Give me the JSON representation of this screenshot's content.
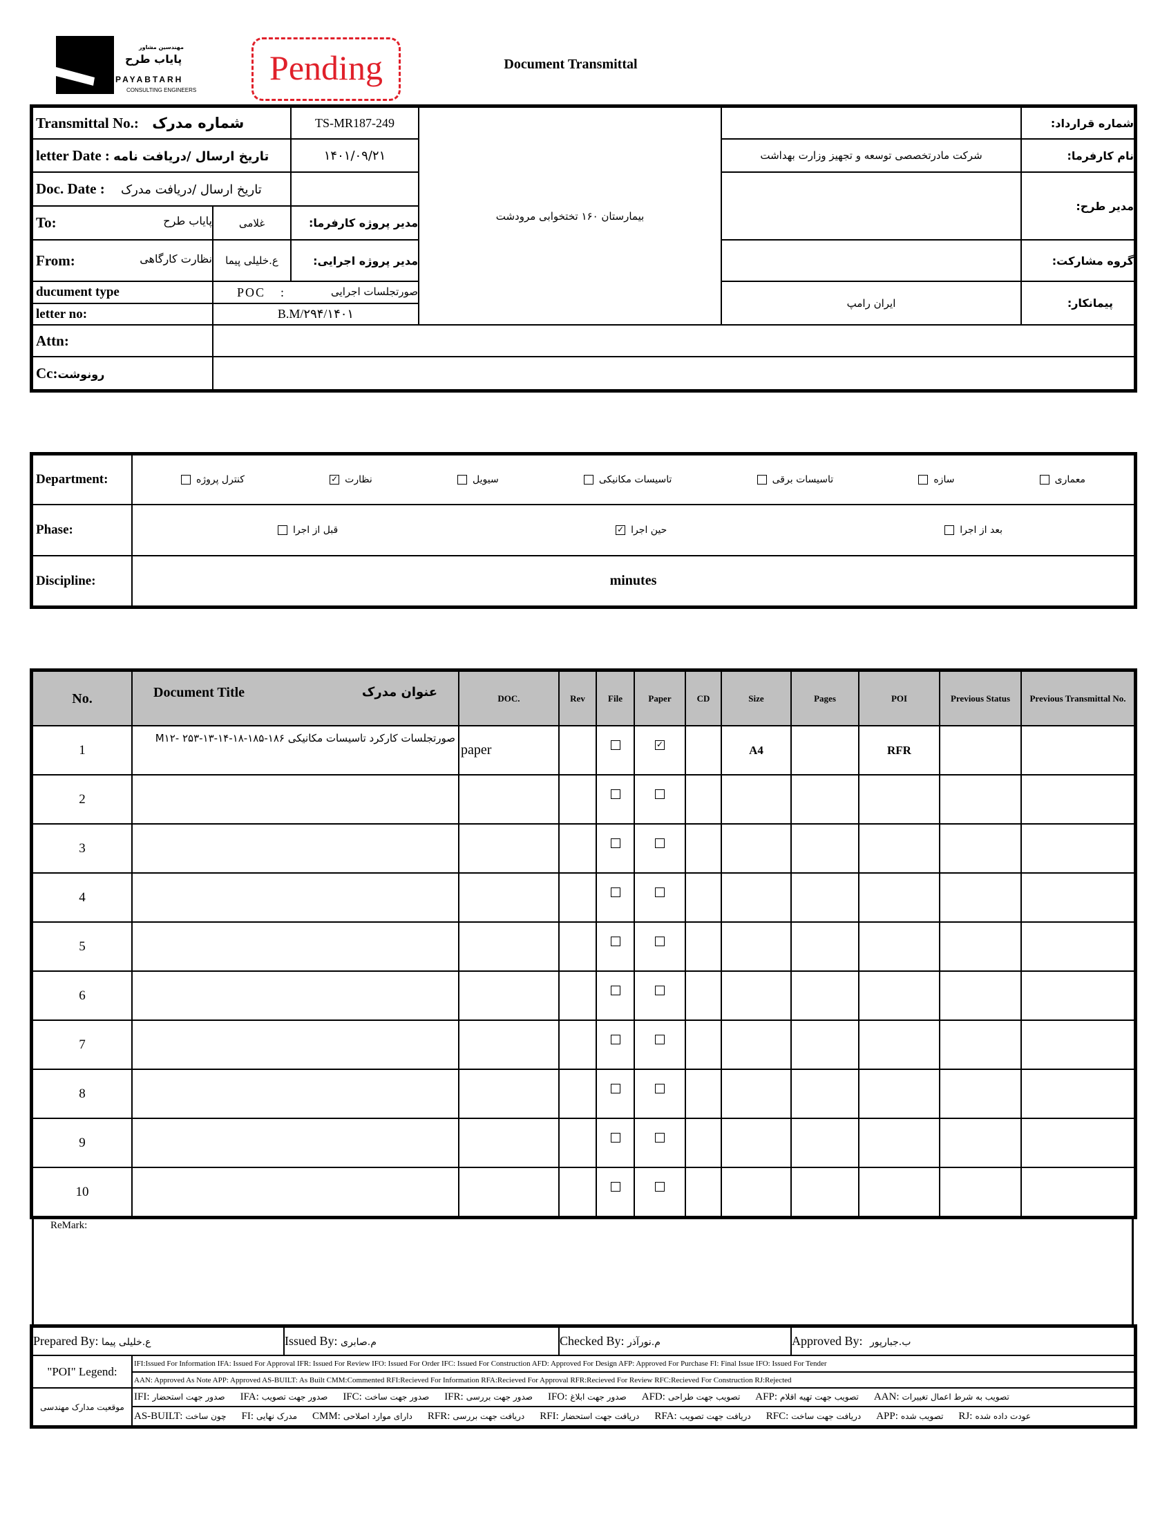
{
  "logo": {
    "fa_sub": "مهندسین مشاور",
    "fa_name": "پایاب طرح",
    "en_name": "PAYABTARH",
    "en_sub": "CONSULTING ENGINEERS"
  },
  "stamp": {
    "text": "Pending",
    "color": "#e0202a"
  },
  "title": "Document Transmittal",
  "header": {
    "transmittal_label": "Transmittal No.:",
    "transmittal_label_fa": "شماره مدرک",
    "transmittal_no": "TS-MR187-249",
    "letter_date_label": "letter Date :",
    "letter_date_label_fa": "تاریخ ارسال /دریافت نامه",
    "letter_date": "۱۴۰۱/۰۹/۲۱",
    "doc_date_label": "Doc. Date :",
    "doc_date_label_fa": "تاریخ ارسال /دریافت مدرک",
    "doc_date": "",
    "to_label": "To:",
    "to_value": "پایاب طرح",
    "to_person": "غلامی",
    "to_role": "مدیر پروژه کارفرما:",
    "from_label": "From:",
    "from_value": "نظارت کارگاهی",
    "from_person": "ع.خلیلی پیما",
    "from_role": "مدیر پروژه اجرایی:",
    "doc_type_label": "ducument type",
    "doc_type_code": "POC",
    "doc_type_sep": ":",
    "doc_type_fa": "صورتجلسات اجرایی",
    "letter_no_label": "letter no:",
    "letter_no": "B.M/۲۹۴/۱۴۰۱",
    "attn_label": "Attn:",
    "attn": "",
    "cc_label": "Cc:",
    "cc_label_fa": "رونوشت",
    "cc": "",
    "project": "بیمارستان ۱۶۰ تختخوابی مرودشت",
    "contract_label": "شماره قرارداد:",
    "contract": "",
    "client_label": "نام کارفرما:",
    "client": "شرکت مادرتخصصی توسعه و تجهیز وزارت بهداشت",
    "pm_label": "مدیر طرح:",
    "pm": "",
    "group_label": "گروه مشارکت:",
    "group": "",
    "contractor_label": "پیمانکار:",
    "contractor": "ایران رامپ"
  },
  "classification": {
    "department_label": "Department:",
    "departments": [
      {
        "label": "معماری",
        "checked": false
      },
      {
        "label": "سازه",
        "checked": false
      },
      {
        "label": "تاسیسات برقی",
        "checked": false
      },
      {
        "label": "تاسیسات مکانیکی",
        "checked": false
      },
      {
        "label": "سیویل",
        "checked": false
      },
      {
        "label": "نظارت",
        "checked": true
      },
      {
        "label": "کنترل پروژه",
        "checked": false
      }
    ],
    "phase_label": "Phase:",
    "phases": [
      {
        "label": "بعد از اجرا",
        "checked": false
      },
      {
        "label": "حین اجرا",
        "checked": true
      },
      {
        "label": "قبل از اجرا",
        "checked": false
      }
    ],
    "discipline_label": "Discipline:",
    "discipline": "minutes"
  },
  "docs": {
    "headers": {
      "no": "No.",
      "title_en": "Document Title",
      "title_fa": "عنوان مدرک",
      "doc": "DOC.",
      "rev": "Rev",
      "file": "File",
      "paper": "Paper",
      "cd": "CD",
      "size": "Size",
      "pages": "Pages",
      "poi": "POI",
      "prev_status": "Previous Status",
      "prev_no": "Previous Transmittal No."
    },
    "rows": [
      {
        "no": "1",
        "title": "صورتجلسات کارکرد تاسیسات مکانیکی ۱۸۶-۱۸۵-۱۸-۱۴-۱۳-M۱۲- ۲۵۳",
        "doc": "paper",
        "rev": "",
        "file": false,
        "paper": true,
        "cd": "",
        "size": "A4",
        "pages": "",
        "poi": "RFR",
        "prev_status": "",
        "prev_no": ""
      },
      {
        "no": "2",
        "title": "",
        "doc": "",
        "rev": "",
        "file": false,
        "paper": false,
        "cd": "",
        "size": "",
        "pages": "",
        "poi": "",
        "prev_status": "",
        "prev_no": ""
      },
      {
        "no": "3",
        "title": "",
        "doc": "",
        "rev": "",
        "file": false,
        "paper": false,
        "cd": "",
        "size": "",
        "pages": "",
        "poi": "",
        "prev_status": "",
        "prev_no": ""
      },
      {
        "no": "4",
        "title": "",
        "doc": "",
        "rev": "",
        "file": false,
        "paper": false,
        "cd": "",
        "size": "",
        "pages": "",
        "poi": "",
        "prev_status": "",
        "prev_no": ""
      },
      {
        "no": "5",
        "title": "",
        "doc": "",
        "rev": "",
        "file": false,
        "paper": false,
        "cd": "",
        "size": "",
        "pages": "",
        "poi": "",
        "prev_status": "",
        "prev_no": ""
      },
      {
        "no": "6",
        "title": "",
        "doc": "",
        "rev": "",
        "file": false,
        "paper": false,
        "cd": "",
        "size": "",
        "pages": "",
        "poi": "",
        "prev_status": "",
        "prev_no": ""
      },
      {
        "no": "7",
        "title": "",
        "doc": "",
        "rev": "",
        "file": false,
        "paper": false,
        "cd": "",
        "size": "",
        "pages": "",
        "poi": "",
        "prev_status": "",
        "prev_no": ""
      },
      {
        "no": "8",
        "title": "",
        "doc": "",
        "rev": "",
        "file": false,
        "paper": false,
        "cd": "",
        "size": "",
        "pages": "",
        "poi": "",
        "prev_status": "",
        "prev_no": ""
      },
      {
        "no": "9",
        "title": "",
        "doc": "",
        "rev": "",
        "file": false,
        "paper": false,
        "cd": "",
        "size": "",
        "pages": "",
        "poi": "",
        "prev_status": "",
        "prev_no": ""
      },
      {
        "no": "10",
        "title": "",
        "doc": "",
        "rev": "",
        "file": false,
        "paper": false,
        "cd": "",
        "size": "",
        "pages": "",
        "poi": "",
        "prev_status": "",
        "prev_no": ""
      }
    ]
  },
  "remark_label": "ReMark:",
  "signatures": {
    "prepared_label": "Prepared By:",
    "prepared": "ع.خلیلی پیما",
    "issued_label": "Issued By:",
    "issued": "م.صابری",
    "checked_label": "Checked By:",
    "checked": "م.نورآذر",
    "approved_label": "Approved By:",
    "approved": "ب.جبارپور"
  },
  "legend": {
    "poi_label": "\"POI\" Legend:",
    "line1": "IFI:Issued For Information  IFA: Issued For Approval  IFR: Issued For Review   IFO: Issued For Order  IFC: Issued For Construction AFD: Approved For Design AFP: Approved For Purchase  FI: Final Issue  IFO: Issued For Tender",
    "line2": "AAN: Approved As Note  APP: Approved  AS-BUILT: As Built CMM:Commented  RFI:Recieved For Information   RFA:Recieved For Approval   RFR:Recieved For Review  RFC:Recieved For Construction  RJ:Rejected",
    "fa_label": "موقعیت مدارک مهندسی",
    "fa_row1": [
      {
        "code": "IFI:",
        "text": "صدور جهت استحضار"
      },
      {
        "code": "IFA:",
        "text": "صدور جهت تصویب"
      },
      {
        "code": "IFC:",
        "text": "صدور جهت ساخت"
      },
      {
        "code": "IFR:",
        "text": "صدور جهت بررسی"
      },
      {
        "code": "IFO:",
        "text": "صدور جهت ابلاغ"
      },
      {
        "code": "AFD:",
        "text": "تصویب جهت طراحی"
      },
      {
        "code": "AFP:",
        "text": "تصویب جهت تهیه اقلام"
      },
      {
        "code": "AAN:",
        "text": "تصویب به شرط اعمال تغییرات"
      }
    ],
    "fa_row2": [
      {
        "code": "AS-BUILT:",
        "text": "چون ساخت"
      },
      {
        "code": "FI:",
        "text": "مدرک نهایی"
      },
      {
        "code": "CMM:",
        "text": "دارای موارد اصلاحی"
      },
      {
        "code": "RFR:",
        "text": "دریافت جهت بررسی"
      },
      {
        "code": "RFI:",
        "text": "دریافت جهت استحضار"
      },
      {
        "code": "RFA:",
        "text": "دریافت جهت تصویب"
      },
      {
        "code": "RFC:",
        "text": "دریافت جهت ساخت"
      },
      {
        "code": "APP:",
        "text": "تصویب شده"
      },
      {
        "code": "RJ:",
        "text": "عودت داده شده"
      }
    ]
  }
}
